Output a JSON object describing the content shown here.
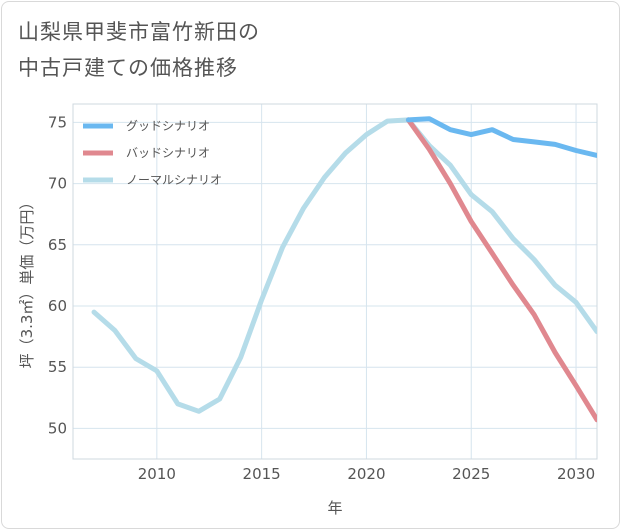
{
  "title_line1": "山梨県甲斐市富竹新田の",
  "title_line2": "中古戸建ての価格推移",
  "chart_data": {
    "type": "line",
    "xlabel": "年",
    "ylabel": "坪（3.3㎡）単価（万円）",
    "xlim": [
      2006,
      2031
    ],
    "ylim": [
      47.5,
      76.5
    ],
    "xticks": [
      2010,
      2015,
      2020,
      2025,
      2030
    ],
    "yticks": [
      50,
      55,
      60,
      65,
      70,
      75
    ],
    "grid": true,
    "legend_position": "top-left",
    "series": [
      {
        "name": "グッドシナリオ",
        "color": "#6ab8f0",
        "x": [
          2022,
          2023,
          2024,
          2025,
          2026,
          2027,
          2028,
          2029,
          2030,
          2031
        ],
        "y": [
          75.2,
          75.3,
          74.4,
          74.0,
          74.4,
          73.6,
          73.4,
          73.2,
          72.7,
          72.3
        ]
      },
      {
        "name": "バッドシナリオ",
        "color": "#e0888f",
        "x": [
          2022,
          2023,
          2024,
          2025,
          2026,
          2027,
          2028,
          2029,
          2030,
          2031
        ],
        "y": [
          75.2,
          72.8,
          70.0,
          66.9,
          64.3,
          61.7,
          59.3,
          56.2,
          53.5,
          50.7
        ]
      },
      {
        "name": "ノーマルシナリオ",
        "color": "#b5dce9",
        "x": [
          2007,
          2008,
          2009,
          2010,
          2011,
          2012,
          2013,
          2014,
          2015,
          2016,
          2017,
          2018,
          2019,
          2020,
          2021,
          2022,
          2023,
          2024,
          2025,
          2026,
          2027,
          2028,
          2029,
          2030,
          2031
        ],
        "y": [
          59.5,
          58.0,
          55.7,
          54.7,
          52.0,
          51.4,
          52.4,
          55.8,
          60.5,
          64.8,
          68.0,
          70.5,
          72.5,
          74.0,
          75.1,
          75.2,
          73.1,
          71.5,
          69.1,
          67.7,
          65.5,
          63.8,
          61.7,
          60.3,
          57.9
        ]
      }
    ]
  }
}
